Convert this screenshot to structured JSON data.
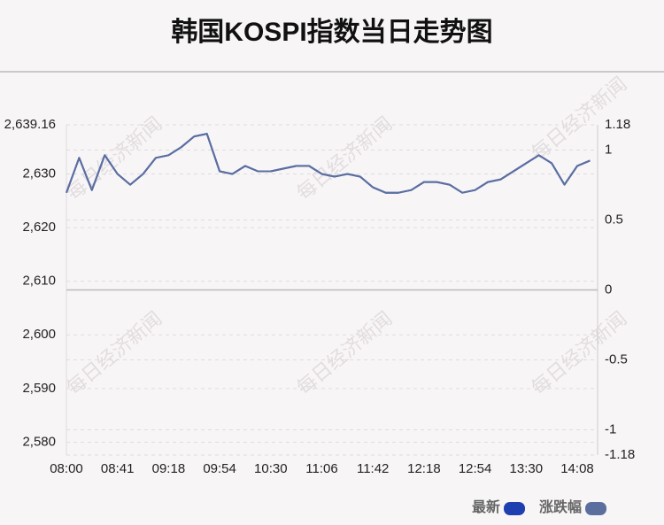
{
  "chart_data": {
    "type": "line",
    "title": "韩国KOSPI指数当日走势图",
    "watermark": "每日经济新闻",
    "categories": [
      "08:00",
      null,
      null,
      null,
      "08:41",
      null,
      null,
      null,
      "09:18",
      null,
      null,
      null,
      "09:54",
      null,
      null,
      null,
      "10:30",
      null,
      null,
      null,
      "11:06",
      null,
      null,
      null,
      "11:42",
      null,
      null,
      null,
      "12:18",
      null,
      null,
      null,
      "12:54",
      null,
      null,
      null,
      "13:30",
      null,
      null,
      null,
      "14:08",
      null
    ],
    "series": [
      {
        "name": "最新",
        "color": "#1e3fb0",
        "axis": "y",
        "values": [
          2626.5,
          2633,
          2627,
          2633.5,
          2630,
          2628,
          2630,
          2633,
          2633.5,
          2635,
          2637,
          2637.5,
          2630.5,
          2630,
          2631.5,
          2630.5,
          2630.5,
          2631,
          2631.5,
          2631.5,
          2630,
          2629.5,
          2630,
          2629.5,
          2627.5,
          2626.5,
          2626.5,
          2627,
          2628.5,
          2628.5,
          2628,
          2626.5,
          2627,
          2628.5,
          2629,
          2630.5,
          2632,
          2633.5,
          2632,
          2628,
          2631.5,
          2632.5
        ]
      },
      {
        "name": "涨跌幅",
        "color": "#5b6f9e",
        "axis": "y2",
        "values": [
          0.695,
          0.944,
          0.714,
          0.963,
          0.829,
          0.752,
          0.829,
          0.944,
          0.963,
          1.021,
          1.097,
          1.116,
          0.848,
          0.829,
          0.886,
          0.848,
          0.848,
          0.867,
          0.886,
          0.886,
          0.829,
          0.81,
          0.829,
          0.81,
          0.733,
          0.695,
          0.695,
          0.714,
          0.771,
          0.771,
          0.752,
          0.695,
          0.714,
          0.771,
          0.79,
          0.848,
          0.906,
          0.963,
          0.906,
          0.752,
          0.886,
          0.925
        ]
      }
    ],
    "ylim": [
      2577.6,
      2639.16
    ],
    "yticks": [
      {
        "value": 2580,
        "label": "2,580"
      },
      {
        "value": 2590,
        "label": "2,590"
      },
      {
        "value": 2600,
        "label": "2,600"
      },
      {
        "value": 2610,
        "label": "2,610"
      },
      {
        "value": 2620,
        "label": "2,620"
      },
      {
        "value": 2630,
        "label": "2,630"
      },
      {
        "value": 2639.16,
        "label": "2,639.16"
      }
    ],
    "y2lim": [
      -1.18,
      1.18
    ],
    "y2ticks": [
      -1.18,
      -1,
      -0.5,
      0,
      0.5,
      1,
      1.18
    ],
    "grid": true,
    "legend": "bottom-right"
  }
}
